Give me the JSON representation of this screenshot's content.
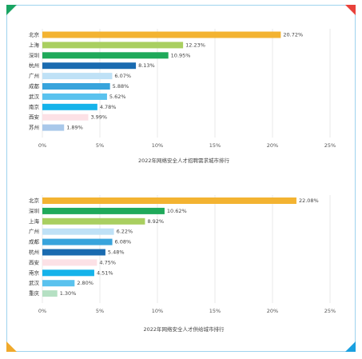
{
  "chart_data": [
    {
      "type": "bar",
      "orientation": "horizontal",
      "title": "2022年网络安全人才招聘需求城市排行",
      "categories": [
        "北京",
        "上海",
        "深圳",
        "杭州",
        "广州",
        "成都",
        "武汉",
        "南京",
        "西安",
        "苏州"
      ],
      "values": [
        20.72,
        12.23,
        10.95,
        8.13,
        6.07,
        5.88,
        5.62,
        4.78,
        3.99,
        1.89
      ],
      "value_labels": [
        "20.72%",
        "12.23%",
        "10.95%",
        "8.13%",
        "6.07%",
        "5.88%",
        "5.62%",
        "4.78%",
        "3.99%",
        "1.89%"
      ],
      "colors": [
        "#f3b331",
        "#a9cf60",
        "#1fa95a",
        "#1a6bb0",
        "#bfe1f6",
        "#38a4dc",
        "#5ac2ee",
        "#15b3ea",
        "#fce1e6",
        "#a9c8ea"
      ],
      "xlim": [
        0,
        25
      ],
      "xticks": [
        "0%",
        "5%",
        "10%",
        "15%",
        "20%",
        "25%"
      ],
      "grid": true
    },
    {
      "type": "bar",
      "orientation": "horizontal",
      "title": "2022年网络安全人才供给城市排行",
      "categories": [
        "北京",
        "深圳",
        "上海",
        "广州",
        "成都",
        "杭州",
        "西安",
        "南京",
        "武汉",
        "重庆"
      ],
      "values": [
        22.08,
        10.62,
        8.92,
        6.22,
        6.08,
        5.48,
        4.75,
        4.51,
        2.8,
        1.3
      ],
      "value_labels": [
        "22.08%",
        "10.62%",
        "8.92%",
        "6.22%",
        "6.08%",
        "5.48%",
        "4.75%",
        "4.51%",
        "2.80%",
        "1.30%"
      ],
      "colors": [
        "#f3b331",
        "#1fa95a",
        "#a9cf60",
        "#bfe1f6",
        "#38a4dc",
        "#1a6bb0",
        "#fce1e6",
        "#15b3ea",
        "#5ac2ee",
        "#b5e0c3"
      ],
      "xlim": [
        0,
        25
      ],
      "xticks": [
        "0%",
        "5%",
        "10%",
        "15%",
        "20%",
        "25%"
      ],
      "grid": true
    }
  ]
}
